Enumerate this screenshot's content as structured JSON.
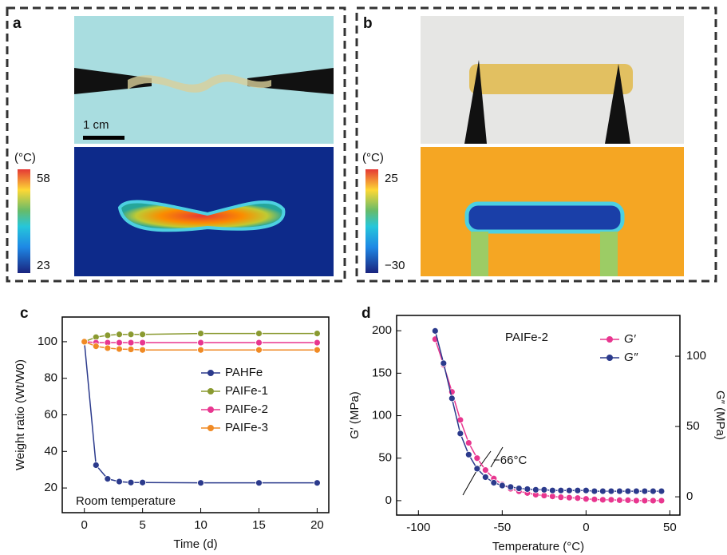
{
  "panels": [
    {
      "label": "a",
      "scale_bar": "1 cm",
      "colorbar_unit": "(°C)",
      "colorbar_max": "58",
      "colorbar_min": "23"
    },
    {
      "label": "b",
      "colorbar_unit": "(°C)",
      "colorbar_max": "25",
      "colorbar_min": "−30"
    }
  ],
  "chart_data": [
    {
      "type": "line",
      "panel_label": "c",
      "x_label": "Time (d)",
      "y_label": "Weight ratio (Wt/W0)",
      "annotation": "Room temperature",
      "legend": "center-right",
      "x": [
        0,
        1,
        2,
        3,
        4,
        5,
        10,
        15,
        20
      ],
      "series": [
        {
          "name": "PAHFe",
          "color": "#2b3a8c",
          "values": [
            100,
            32.5,
            25,
            23.5,
            23,
            23,
            22.8,
            22.8,
            22.8
          ]
        },
        {
          "name": "PAIFe-1",
          "color": "#8a9a30",
          "values": [
            100,
            102.5,
            103.5,
            104,
            104,
            104,
            104.5,
            104.5,
            104.5
          ]
        },
        {
          "name": "PAIFe-2",
          "color": "#e8368f",
          "values": [
            100,
            99.5,
            99.5,
            99.5,
            99.5,
            99.5,
            99.5,
            99.5,
            99.5
          ]
        },
        {
          "name": "PAIFe-3",
          "color": "#f08a24",
          "values": [
            100,
            97.5,
            96.5,
            96,
            95.8,
            95.5,
            95.5,
            95.5,
            95.5
          ]
        }
      ],
      "xlim": [
        -1.9,
        21
      ],
      "xticks": [
        0,
        5,
        10,
        15,
        20
      ],
      "ylim": [
        6.5,
        113.5
      ],
      "yticks": [
        20,
        40,
        60,
        80,
        100
      ]
    },
    {
      "type": "line",
      "panel_label": "d",
      "title": "PAIFe-2",
      "x_label": "Temperature (°C)",
      "y_label": "G′ (MPa)",
      "y2_label": "G″ (MPa)",
      "annotation": "−66°C",
      "legend": "upper-right",
      "x": [
        -90,
        -85,
        -80,
        -75,
        -70,
        -65,
        -60,
        -55,
        -50,
        -45,
        -40,
        -35,
        -30,
        -25,
        -20,
        -15,
        -10,
        -5,
        0,
        5,
        10,
        15,
        20,
        25,
        30,
        35,
        40,
        45
      ],
      "series": [
        {
          "name": "G′",
          "color": "#e8368f",
          "values": [
            190,
            160,
            128,
            95,
            68,
            50,
            36,
            26,
            19,
            14,
            11,
            9,
            7,
            6,
            5,
            4,
            3.5,
            3,
            2,
            1.5,
            1,
            1,
            0.5,
            0.5,
            0,
            0,
            0,
            0
          ]
        },
        {
          "name": "G″",
          "color": "#2b3a8c",
          "axis": "y2",
          "values": [
            118,
            95,
            70,
            45,
            30,
            20,
            14,
            10,
            8,
            7,
            6,
            5.5,
            5,
            5,
            4.5,
            4.5,
            4.5,
            4.5,
            4.5,
            4,
            4,
            4,
            4,
            4,
            4,
            4,
            4,
            4
          ]
        }
      ],
      "xlim": [
        -113,
        56
      ],
      "xticks": [
        -100,
        -50,
        0,
        50
      ],
      "ylim": [
        -17,
        218
      ],
      "yticks": [
        0,
        50,
        100,
        150,
        200
      ],
      "y2lim": [
        -13,
        129
      ],
      "y2ticks": [
        0,
        50,
        100
      ]
    }
  ]
}
